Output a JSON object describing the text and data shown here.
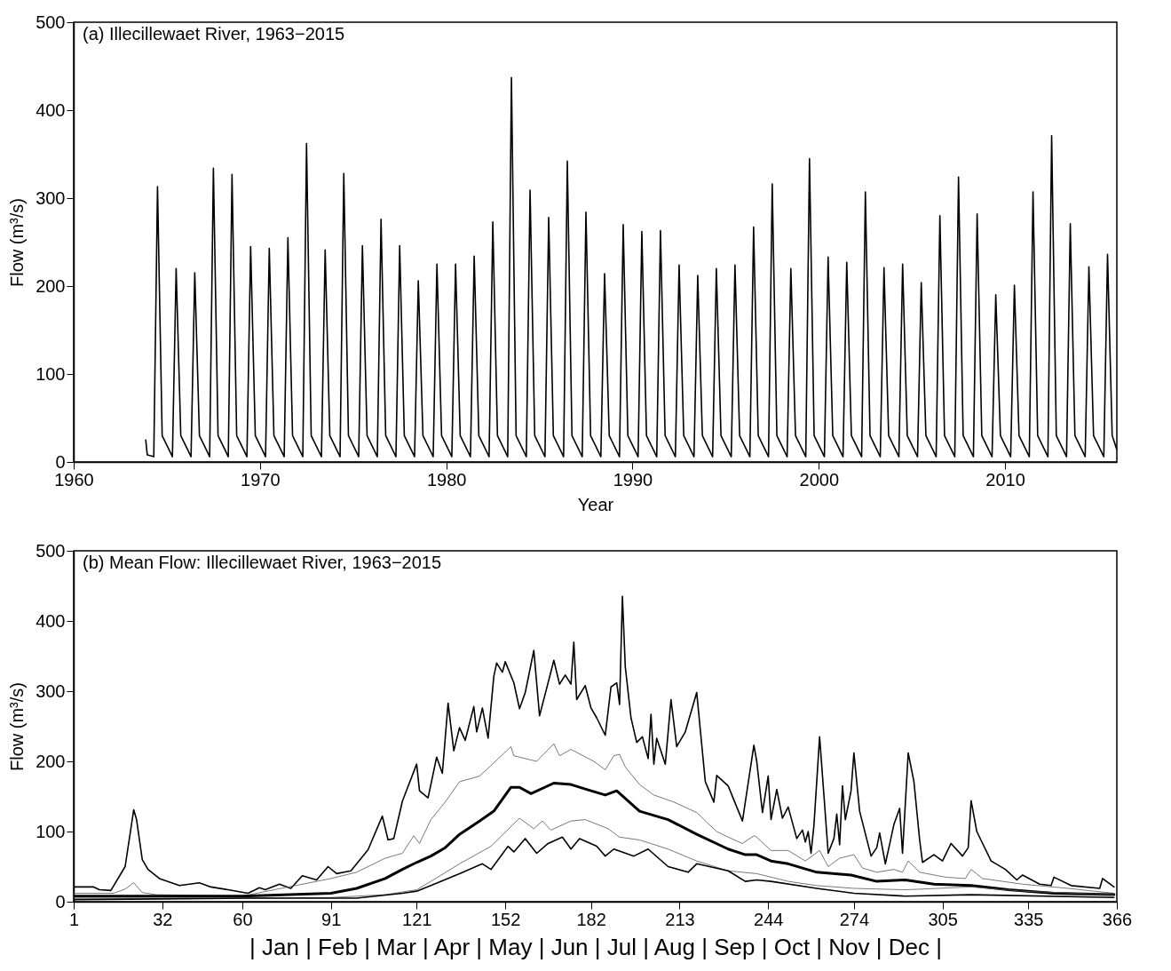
{
  "chart_data": [
    {
      "type": "line",
      "title": "(a) Illecillewaet River, 1963−2015",
      "xlabel": "Year",
      "ylabel": "Flow (m³/s)",
      "xlim": [
        1960,
        2016
      ],
      "xticks": [
        1960,
        1970,
        1980,
        1990,
        2000,
        2010
      ],
      "ylim": [
        0,
        500
      ],
      "yticks": [
        0,
        100,
        200,
        300,
        400,
        500
      ],
      "series": [
        {
          "color": "#000000",
          "x": [
            1963.87,
            1963.95,
            1964.3,
            1964.5,
            1964.75,
            1965.3,
            1965.5,
            1965.75,
            1966.3,
            1966.5,
            1966.75,
            1967.3,
            1967.5,
            1967.75,
            1968.3,
            1968.5,
            1968.75,
            1969.3,
            1969.5,
            1969.75,
            1970.3,
            1970.5,
            1970.75,
            1971.3,
            1971.5,
            1971.75,
            1972.3,
            1972.5,
            1972.75,
            1973.3,
            1973.5,
            1973.75,
            1974.3,
            1974.5,
            1974.75,
            1975.3,
            1975.5,
            1975.75,
            1976.3,
            1976.5,
            1976.75,
            1977.3,
            1977.5,
            1977.75,
            1978.3,
            1978.5,
            1978.75,
            1979.3,
            1979.5,
            1979.75,
            1980.3,
            1980.5,
            1980.75,
            1981.3,
            1981.5,
            1981.75,
            1982.3,
            1982.5,
            1982.75,
            1983.3,
            1983.5,
            1983.75,
            1984.3,
            1984.5,
            1984.75,
            1985.3,
            1985.5,
            1985.75,
            1986.3,
            1986.5,
            1986.75,
            1987.3,
            1987.5,
            1987.75,
            1988.3,
            1988.5,
            1988.75,
            1989.3,
            1989.5,
            1989.75,
            1990.3,
            1990.5,
            1990.75,
            1991.3,
            1991.5,
            1991.75,
            1992.3,
            1992.5,
            1992.75,
            1993.3,
            1993.5,
            1993.75,
            1994.3,
            1994.5,
            1994.75,
            1995.3,
            1995.5,
            1995.75,
            1996.3,
            1996.5,
            1996.75,
            1997.3,
            1997.5,
            1997.75,
            1998.3,
            1998.5,
            1998.75,
            1999.3,
            1999.5,
            1999.75,
            2000.3,
            2000.5,
            2000.75,
            2001.3,
            2001.5,
            2001.75,
            2002.3,
            2002.5,
            2002.75,
            2003.3,
            2003.5,
            2003.75,
            2004.3,
            2004.5,
            2004.75,
            2005.3,
            2005.5,
            2005.75,
            2006.3,
            2006.5,
            2006.75,
            2007.3,
            2007.5,
            2007.75,
            2008.3,
            2008.5,
            2008.75,
            2009.3,
            2009.5,
            2009.75,
            2010.3,
            2010.5,
            2010.75,
            2011.3,
            2011.5,
            2011.75,
            2012.3,
            2012.5,
            2012.75,
            2013.3,
            2013.5,
            2013.75,
            2014.3,
            2014.5,
            2014.75,
            2015.3,
            2015.5,
            2015.75,
            2016
          ],
          "values": [
            25,
            8,
            6,
            313,
            30,
            6,
            220,
            30,
            6,
            215,
            30,
            6,
            334,
            30,
            6,
            327,
            30,
            6,
            245,
            30,
            6,
            243,
            30,
            6,
            255,
            30,
            6,
            362,
            30,
            6,
            241,
            30,
            6,
            328,
            30,
            6,
            246,
            30,
            6,
            276,
            30,
            6,
            246,
            30,
            6,
            206,
            30,
            6,
            225,
            30,
            6,
            225,
            30,
            6,
            234,
            30,
            6,
            273,
            30,
            6,
            437,
            30,
            6,
            309,
            30,
            6,
            278,
            30,
            6,
            342,
            30,
            6,
            284,
            30,
            6,
            214,
            30,
            6,
            270,
            30,
            6,
            262,
            30,
            6,
            263,
            30,
            6,
            224,
            30,
            6,
            212,
            30,
            6,
            220,
            30,
            6,
            224,
            30,
            6,
            267,
            30,
            6,
            316,
            30,
            6,
            220,
            30,
            6,
            345,
            30,
            6,
            233,
            30,
            6,
            227,
            30,
            6,
            307,
            30,
            6,
            221,
            30,
            6,
            225,
            30,
            6,
            204,
            30,
            6,
            280,
            30,
            6,
            324,
            30,
            6,
            282,
            30,
            6,
            190,
            30,
            6,
            201,
            30,
            6,
            307,
            30,
            6,
            371,
            30,
            6,
            271,
            30,
            6,
            222,
            30,
            6,
            236,
            30,
            14
          ]
        }
      ]
    },
    {
      "type": "line",
      "title": "(b) Mean Flow: Illecillewaet River, 1963−2015",
      "xlabel": "| Jan | Feb | Mar | Apr | May | Jun | Jul | Aug | Sep | Oct | Nov | Dec |",
      "ylabel": "Flow (m³/s)",
      "xlim": [
        1,
        366
      ],
      "xticks": [
        1,
        32,
        60,
        91,
        121,
        152,
        182,
        213,
        244,
        274,
        305,
        335,
        366
      ],
      "ylim": [
        0,
        500
      ],
      "yticks": [
        0,
        100,
        200,
        300,
        400,
        500
      ],
      "series": [
        {
          "color": "#000000",
          "x": [
            1,
            8,
            10,
            14,
            19,
            22,
            23,
            25,
            27,
            31,
            38,
            45,
            49,
            55,
            62,
            66,
            68,
            73,
            77,
            81,
            86,
            90,
            93,
            98,
            104,
            109,
            111,
            113,
            116,
            121,
            122,
            125,
            128,
            130,
            132,
            134,
            136,
            138,
            141,
            142,
            144,
            146,
            148,
            149,
            151,
            152,
            155,
            157,
            159,
            162,
            164,
            167,
            169,
            171,
            173,
            175,
            176,
            177,
            180,
            182,
            184,
            187,
            189,
            191,
            192,
            193,
            194,
            196,
            198,
            200,
            202,
            203,
            204,
            205,
            208,
            210,
            212,
            215,
            219,
            222,
            225,
            226,
            230,
            235,
            239,
            240,
            242,
            244,
            245,
            247,
            249,
            251,
            254,
            256,
            257,
            258,
            259,
            260,
            262,
            265,
            267,
            268,
            269,
            270,
            271,
            273,
            274,
            276,
            280,
            282,
            283,
            285,
            288,
            290,
            291,
            293,
            295,
            297,
            298,
            302,
            305,
            308,
            312,
            314,
            315,
            317,
            322,
            327,
            331,
            333,
            339,
            343,
            344,
            350,
            360,
            361,
            365
          ],
          "values": [
            21,
            21,
            17,
            16,
            50,
            131,
            117,
            60,
            46,
            33,
            23,
            27,
            21,
            17,
            12,
            20,
            17,
            25,
            19,
            37,
            31,
            50,
            40,
            44,
            74,
            122,
            88,
            90,
            143,
            196,
            158,
            148,
            206,
            183,
            283,
            215,
            248,
            230,
            278,
            242,
            276,
            233,
            321,
            340,
            327,
            342,
            312,
            275,
            298,
            358,
            265,
            312,
            344,
            310,
            323,
            310,
            370,
            288,
            308,
            276,
            262,
            237,
            306,
            312,
            281,
            435,
            335,
            262,
            227,
            235,
            204,
            267,
            196,
            233,
            196,
            288,
            221,
            242,
            298,
            171,
            142,
            180,
            165,
            115,
            223,
            200,
            127,
            179,
            117,
            160,
            119,
            135,
            90,
            102,
            85,
            100,
            69,
            108,
            235,
            69,
            90,
            125,
            81,
            165,
            117,
            158,
            212,
            129,
            65,
            77,
            98,
            54,
            110,
            133,
            69,
            212,
            171,
            88,
            56,
            67,
            58,
            83,
            65,
            77,
            144,
            100,
            58,
            46,
            31,
            38,
            25,
            23,
            35,
            23,
            19,
            33,
            21
          ]
        },
        {
          "color": "#555555",
          "x": [
            1,
            15,
            19,
            22,
            25,
            30,
            60,
            91,
            100,
            110,
            116,
            120,
            122,
            126,
            131,
            136,
            143,
            147,
            154,
            155,
            163,
            169,
            171,
            175,
            183,
            187,
            190,
            192,
            194,
            199,
            204,
            211,
            219,
            226,
            230,
            235,
            239,
            240,
            245,
            251,
            257,
            262,
            265,
            269,
            274,
            277,
            282,
            288,
            291,
            293,
            297,
            306,
            313,
            315,
            319,
            333,
            349,
            365
          ],
          "values": [
            12,
            12,
            18,
            27,
            13,
            10,
            8,
            33,
            42,
            62,
            69,
            94,
            83,
            117,
            142,
            171,
            179,
            194,
            221,
            208,
            200,
            225,
            208,
            217,
            200,
            188,
            208,
            210,
            192,
            167,
            152,
            142,
            127,
            100,
            92,
            83,
            94,
            92,
            73,
            73,
            58,
            73,
            50,
            62,
            67,
            48,
            42,
            46,
            42,
            58,
            42,
            35,
            33,
            46,
            33,
            25,
            19,
            12
          ]
        },
        {
          "color": "#000000",
          "x": [
            1,
            30,
            60,
            91,
            100,
            110,
            116,
            121,
            126,
            131,
            136,
            143,
            148,
            154,
            157,
            161,
            169,
            175,
            182,
            187,
            191,
            199,
            209,
            219,
            230,
            236,
            240,
            245,
            251,
            261,
            273,
            282,
            292,
            302,
            315,
            328,
            344,
            365
          ],
          "values": [
            8,
            8,
            8,
            12,
            19,
            33,
            46,
            56,
            65,
            77,
            96,
            115,
            129,
            163,
            163,
            154,
            169,
            167,
            158,
            152,
            158,
            129,
            117,
            96,
            75,
            67,
            67,
            58,
            54,
            42,
            38,
            29,
            31,
            25,
            23,
            17,
            12,
            10
          ]
        },
        {
          "color": "#555555",
          "x": [
            1,
            30,
            60,
            91,
            110,
            121,
            126,
            136,
            147,
            157,
            162,
            165,
            168,
            175,
            180,
            188,
            192,
            199,
            209,
            219,
            230,
            240,
            251,
            261,
            274,
            292,
            315,
            333,
            365
          ],
          "values": [
            5,
            5,
            5,
            6,
            10,
            17,
            29,
            54,
            79,
            119,
            104,
            115,
            102,
            115,
            117,
            104,
            92,
            88,
            75,
            58,
            44,
            40,
            29,
            23,
            19,
            17,
            21,
            15,
            10
          ]
        },
        {
          "color": "#000000",
          "x": [
            1,
            30,
            60,
            100,
            116,
            121,
            126,
            136,
            144,
            147,
            153,
            155,
            159,
            163,
            167,
            172,
            175,
            178,
            184,
            187,
            190,
            197,
            202,
            209,
            216,
            219,
            230,
            236,
            240,
            245,
            261,
            274,
            292,
            315,
            365
          ],
          "values": [
            3,
            4,
            5,
            5,
            12,
            15,
            23,
            40,
            54,
            46,
            79,
            71,
            90,
            69,
            83,
            92,
            75,
            90,
            79,
            65,
            75,
            65,
            75,
            50,
            42,
            54,
            44,
            29,
            31,
            29,
            19,
            12,
            8,
            10,
            6
          ]
        }
      ]
    }
  ]
}
